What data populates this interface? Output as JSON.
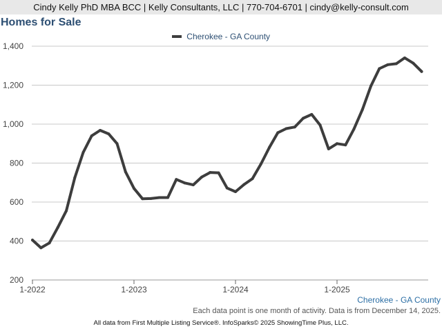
{
  "header": {
    "contact_line": "Cindy Kelly PhD MBA BCC | Kelly Consultants, LLC | 770-704-6701 | cindy@kelly-consult.com"
  },
  "legend_color": "#3d3d3d",
  "chart_data": {
    "type": "line",
    "title": "Homes for Sale",
    "xlabel": "",
    "ylabel": "",
    "ylim": [
      200,
      1400
    ],
    "yticks": [
      200,
      400,
      600,
      800,
      1000,
      1200,
      1400
    ],
    "ytick_labels": [
      "200",
      "400",
      "600",
      "800",
      "1,000",
      "1,200",
      "1,400"
    ],
    "xtick_labels": [
      "1-2022",
      "1-2023",
      "1-2024",
      "1-2025"
    ],
    "xtick_indices": [
      0,
      12,
      24,
      36
    ],
    "grid": true,
    "legend": [
      "Cherokee - GA County"
    ],
    "legend_position": "top-center",
    "series": [
      {
        "name": "Cherokee - GA County",
        "color": "#3d3d3d",
        "values": [
          405,
          365,
          390,
          470,
          555,
          725,
          855,
          940,
          968,
          950,
          900,
          755,
          670,
          617,
          618,
          623,
          623,
          716,
          698,
          688,
          728,
          752,
          750,
          672,
          653,
          690,
          720,
          795,
          880,
          956,
          977,
          985,
          1030,
          1050,
          995,
          873,
          900,
          893,
          975,
          1075,
          1195,
          1285,
          1305,
          1310,
          1340,
          1313,
          1270
        ]
      }
    ]
  },
  "series_label": "Cherokee - GA County",
  "note": "Each data point is one month of activity. Data is from December 14, 2025.",
  "footer": "All data from First Multiple Listing Service®. InfoSparks© 2025 ShowingTime Plus, LLC."
}
